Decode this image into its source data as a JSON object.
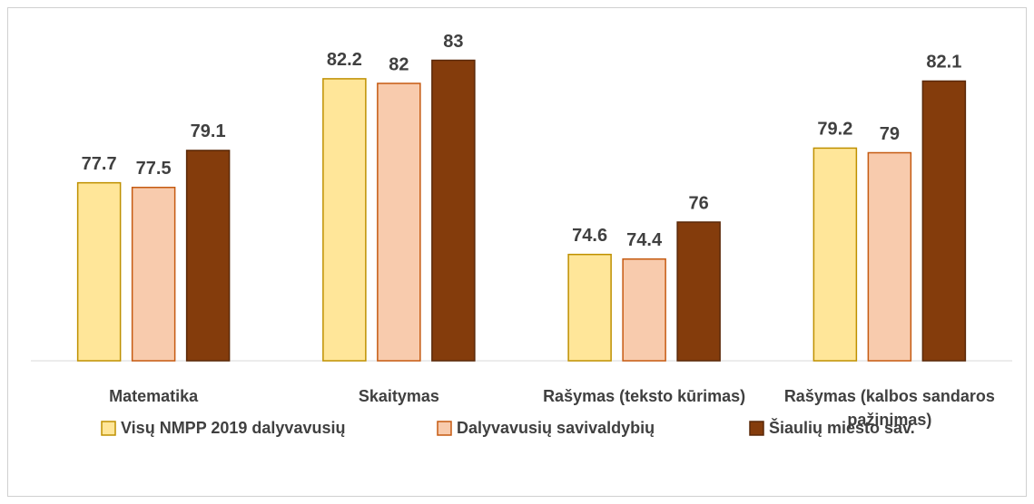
{
  "chart_data": {
    "type": "bar",
    "categories": [
      "Matematika",
      "Skaitymas",
      "Rašymas (teksto kūrimas)",
      "Rašymas (kalbos sandaros pažinimas)"
    ],
    "series": [
      {
        "name": "Visų NMPP 2019 dalyvavusių",
        "color": "#FFE699",
        "values": [
          77.7,
          82.2,
          74.6,
          79.2
        ]
      },
      {
        "name": "Dalyvavusių savivaldybių",
        "color": "#F8CBAD",
        "values": [
          77.5,
          82,
          74.4,
          79
        ]
      },
      {
        "name": "Šiaulių miesto sav.",
        "color": "#843C0C",
        "values": [
          79.1,
          83,
          76,
          82.1
        ]
      }
    ],
    "ylim": [
      70,
      85
    ],
    "legend": "bottom"
  }
}
